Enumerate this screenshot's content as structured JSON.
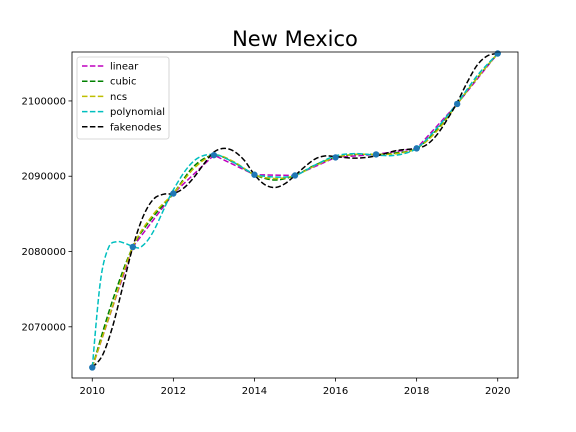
{
  "chart_data": {
    "type": "line",
    "title": "New Mexico",
    "xlabel": "",
    "ylabel": "",
    "xlim": [
      2009.5,
      2020.5
    ],
    "ylim": [
      2063200,
      2106500
    ],
    "xticks": [
      2010,
      2012,
      2014,
      2016,
      2018,
      2020
    ],
    "xtick_labels": [
      "2010",
      "2012",
      "2014",
      "2016",
      "2018",
      "2020"
    ],
    "yticks": [
      2070000,
      2080000,
      2090000,
      2100000
    ],
    "ytick_labels": [
      "2070000",
      "2080000",
      "2090000",
      "2100000"
    ],
    "grid": false,
    "legend_position": "top-left",
    "points": {
      "x": [
        2010,
        2011,
        2012,
        2013,
        2014,
        2015,
        2016,
        2017,
        2018,
        2019,
        2020
      ],
      "y": [
        2064600,
        2080600,
        2087700,
        2092800,
        2090200,
        2090100,
        2092500,
        2092900,
        2093700,
        2099600,
        2106300
      ],
      "color": "#1f77b4"
    },
    "series": [
      {
        "name": "linear",
        "color": "#bf00bf",
        "x": [
          2010,
          2011,
          2012,
          2013,
          2014,
          2015,
          2016,
          2017,
          2018,
          2019,
          2020
        ],
        "y": [
          2064600,
          2080600,
          2087700,
          2092800,
          2090200,
          2090100,
          2092500,
          2092900,
          2093700,
          2099600,
          2106300
        ]
      },
      {
        "name": "cubic",
        "color": "#008000",
        "x": [
          2010,
          2010.5,
          2011,
          2011.5,
          2012,
          2012.5,
          2013,
          2013.5,
          2014,
          2014.5,
          2015,
          2015.5,
          2016,
          2016.5,
          2017,
          2017.5,
          2018,
          2018.5,
          2019,
          2019.5,
          2020
        ],
        "y": [
          2064600,
          2073500,
          2080600,
          2084600,
          2087700,
          2091300,
          2092800,
          2091800,
          2090200,
          2089500,
          2090100,
          2091500,
          2092500,
          2092900,
          2092900,
          2093100,
          2093700,
          2096200,
          2099600,
          2103100,
          2106300
        ]
      },
      {
        "name": "ncs",
        "color": "#bfbf00",
        "x": [
          2010,
          2010.5,
          2011,
          2011.5,
          2012,
          2012.5,
          2013,
          2013.5,
          2014,
          2014.5,
          2015,
          2015.5,
          2016,
          2016.5,
          2017,
          2017.5,
          2018,
          2018.5,
          2019,
          2019.5,
          2020
        ],
        "y": [
          2064600,
          2072700,
          2080600,
          2084900,
          2087700,
          2091000,
          2092800,
          2091900,
          2090200,
          2089700,
          2090100,
          2091400,
          2092500,
          2092900,
          2092900,
          2093000,
          2093700,
          2096000,
          2099600,
          2103100,
          2106300
        ]
      },
      {
        "name": "polynomial",
        "color": "#00bfbf",
        "x": [
          2010,
          2010.2,
          2010.4,
          2010.6,
          2010.8,
          2011,
          2011.2,
          2011.5,
          2012,
          2012.5,
          2013,
          2013.5,
          2014,
          2014.5,
          2015,
          2015.5,
          2016,
          2016.5,
          2017,
          2017.5,
          2018,
          2018.5,
          2019,
          2019.5,
          2020
        ],
        "y": [
          2064600,
          2076000,
          2080500,
          2081300,
          2081100,
          2080700,
          2080600,
          2082600,
          2088200,
          2092000,
          2092900,
          2091800,
          2090300,
          2089900,
          2090100,
          2091500,
          2092700,
          2093000,
          2092800,
          2092800,
          2093700,
          2096400,
          2099700,
          2103400,
          2106300
        ]
      },
      {
        "name": "fakenodes",
        "color": "#000000",
        "x": [
          2010,
          2010.25,
          2010.5,
          2010.75,
          2011,
          2011.25,
          2011.5,
          2011.75,
          2012,
          2012.25,
          2012.5,
          2012.75,
          2013,
          2013.25,
          2013.5,
          2013.75,
          2014,
          2014.25,
          2014.5,
          2014.75,
          2015,
          2015.25,
          2015.5,
          2015.75,
          2016,
          2016.5,
          2017,
          2017.5,
          2018,
          2018.25,
          2018.5,
          2018.75,
          2019,
          2019.25,
          2019.5,
          2019.75,
          2020
        ],
        "y": [
          2064600,
          2066200,
          2070000,
          2075300,
          2080600,
          2084600,
          2086900,
          2087600,
          2087700,
          2088400,
          2089800,
          2091600,
          2093200,
          2093700,
          2093300,
          2092100,
          2090200,
          2088900,
          2088500,
          2089000,
          2090100,
          2091300,
          2092300,
          2092700,
          2092600,
          2092400,
          2092700,
          2093400,
          2093700,
          2094200,
          2095500,
          2097500,
          2099800,
          2102500,
          2104800,
          2106000,
          2106300
        ]
      }
    ]
  }
}
